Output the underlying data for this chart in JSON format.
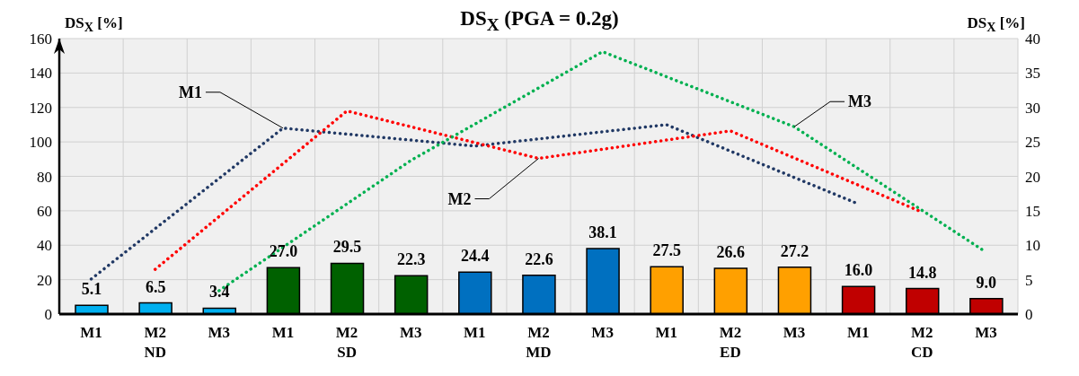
{
  "chart_data": {
    "type": "bar",
    "title": "DS$_{X}$ (PGA = 0.2g)",
    "ylabel": "DS$_{X}$ [%]",
    "y2label": "DS$_{X}$ [%]",
    "categories": [
      "M1",
      "M2",
      "M3",
      "M1",
      "M2",
      "M3",
      "M1",
      "M2",
      "M3",
      "M1",
      "M2",
      "M3",
      "M1",
      "M2",
      "M3"
    ],
    "annotations": [
      "ND",
      "SD",
      "MD",
      "ED",
      "CD"
    ],
    "series": [
      {
        "colors": [
          "#00b0f0",
          "#00b0f0",
          "#00b0f0",
          "#006100",
          "#006100",
          "#006100",
          "#0070c0",
          "#0070c0",
          "#0070c0",
          "#ffa000",
          "#ffa000",
          "#ffa000",
          "#c00000",
          "#c00000",
          "#c00000"
        ],
        "values": [
          5.1,
          6.5,
          3.4,
          27.0,
          29.5,
          22.3,
          24.4,
          22.6,
          38.1,
          27.5,
          26.6,
          27.2,
          16.0,
          14.8,
          9.0
        ],
        "value_labels": [
          "5.1",
          "6.5",
          "3.4",
          "27.0",
          "29.5",
          "22.3",
          "24.4",
          "22.6",
          "38.1",
          "27.5",
          "26.6",
          "27.2",
          "16.0",
          "14.8",
          "9.0"
        ]
      },
      {
        "type": "line",
        "name": "M1",
        "axis": "y2",
        "color": "#203864",
        "values": [
          5.1,
          null,
          null,
          27.0,
          null,
          null,
          24.4,
          null,
          null,
          27.5,
          null,
          null,
          16.0,
          null,
          null
        ]
      },
      {
        "type": "line",
        "name": "M2",
        "axis": "y2",
        "color": "#ff0000",
        "values": [
          null,
          6.5,
          null,
          null,
          29.5,
          null,
          null,
          22.6,
          null,
          null,
          26.6,
          null,
          null,
          14.8,
          null
        ]
      },
      {
        "type": "line",
        "name": "M3",
        "axis": "y2",
        "color": "#00b050",
        "values": [
          null,
          null,
          3.4,
          null,
          null,
          22.3,
          null,
          null,
          38.1,
          null,
          null,
          27.2,
          null,
          null,
          9.0
        ]
      }
    ],
    "ylim": [
      0,
      160
    ],
    "yticks": [
      0,
      20,
      40,
      60,
      80,
      100,
      120,
      140,
      160
    ],
    "y2lim": [
      0,
      40
    ],
    "y2ticks": [
      0,
      5,
      10,
      15,
      20,
      25,
      30,
      35,
      40
    ],
    "grid": true,
    "legend": false,
    "marker": "none",
    "line_style": "dotted"
  }
}
